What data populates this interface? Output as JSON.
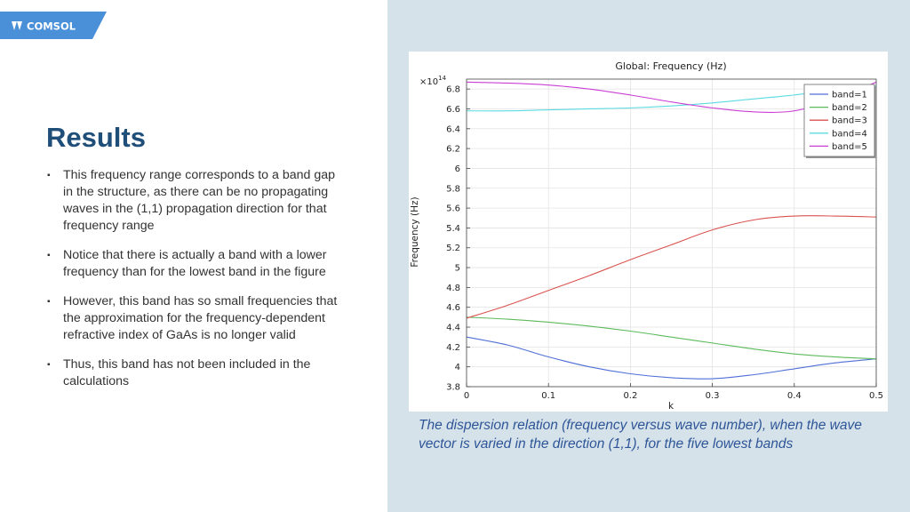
{
  "brand": {
    "logo_text": "COMSOL",
    "logo_color": "#4a90d9"
  },
  "slide": {
    "title": "Results",
    "bullets": [
      "This frequency range corresponds to a band gap in the structure, as there can be no propagating waves in the (1,1) propagation direction for that frequency range",
      "Notice that there is actually a band with a lower frequency than for the lowest band in the figure",
      "However, this band has so small frequencies that the approximation for the frequency-dependent refractive index of GaAs is no longer valid",
      "Thus, this band has not been included in the calculations"
    ],
    "caption": "The dispersion relation (frequency versus wave number), when the wave vector is varied in the direction (1,1), for the five lowest bands"
  },
  "chart_data": {
    "type": "line",
    "title": "Global: Frequency (Hz)",
    "xlabel": "k",
    "ylabel": "Frequency (Hz)",
    "y_multiplier": "×10",
    "y_exponent": "14",
    "xlim": [
      0,
      0.5
    ],
    "ylim": [
      3.8,
      6.9
    ],
    "xticks": [
      "0",
      "0.1",
      "0.2",
      "0.3",
      "0.4",
      "0.5"
    ],
    "yticks": [
      "3.8",
      "4",
      "4.2",
      "4.4",
      "4.6",
      "4.8",
      "5",
      "5.2",
      "5.4",
      "5.6",
      "5.8",
      "6",
      "6.2",
      "6.4",
      "6.6",
      "6.8"
    ],
    "grid": true,
    "legend_position": "top-right",
    "x": [
      0,
      0.05,
      0.1,
      0.15,
      0.2,
      0.25,
      0.3,
      0.35,
      0.4,
      0.45,
      0.5
    ],
    "series": [
      {
        "name": "band=1",
        "color": "#4f6fd6",
        "values": [
          4.3,
          4.22,
          4.1,
          4.0,
          3.93,
          3.89,
          3.88,
          3.92,
          3.98,
          4.04,
          4.08
        ]
      },
      {
        "name": "band=2",
        "color": "#5cba5c",
        "values": [
          4.5,
          4.48,
          4.45,
          4.41,
          4.36,
          4.3,
          4.24,
          4.18,
          4.13,
          4.1,
          4.08
        ]
      },
      {
        "name": "band=3",
        "color": "#d9534f",
        "values": [
          4.49,
          4.62,
          4.77,
          4.92,
          5.08,
          5.23,
          5.38,
          5.48,
          5.52,
          5.52,
          5.51
        ]
      },
      {
        "name": "band=4",
        "color": "#5bdbe0",
        "values": [
          6.58,
          6.58,
          6.59,
          6.6,
          6.61,
          6.63,
          6.66,
          6.7,
          6.74,
          6.79,
          6.83
        ]
      },
      {
        "name": "band=5",
        "color": "#c93fd3",
        "values": [
          6.87,
          6.86,
          6.84,
          6.8,
          6.74,
          6.67,
          6.61,
          6.57,
          6.58,
          6.7,
          6.87
        ]
      }
    ]
  }
}
